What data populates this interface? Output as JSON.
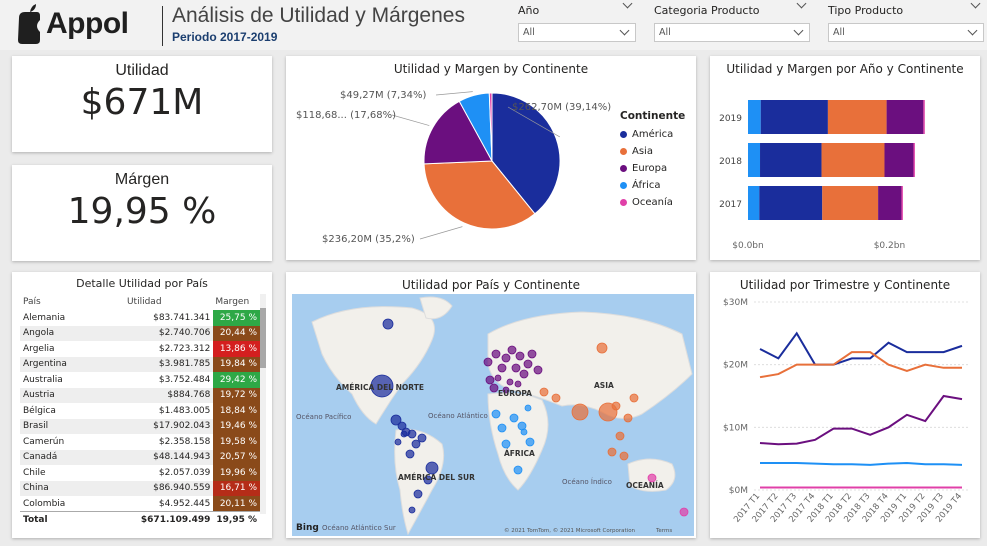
{
  "header": {
    "brand": "Appol",
    "title": "Análisis de Utilidad y Márgenes",
    "subtitle": "Periodo 2017-2019"
  },
  "filters": [
    {
      "label": "Año",
      "value": "All"
    },
    {
      "label": "Categoria Producto",
      "value": "All"
    },
    {
      "label": "Tipo Producto",
      "value": "All"
    }
  ],
  "kpis": {
    "utilidad": {
      "label": "Utilidad",
      "value": "$671M"
    },
    "margen": {
      "label": "Márgen",
      "value": "19,95 %"
    }
  },
  "colors": {
    "america": "#1a2d9c",
    "asia": "#e8703a",
    "europa": "#6b0f7f",
    "africa": "#1e90f5",
    "oceania": "#e040a8",
    "pos": "#2ea846",
    "neg": "#d41f1f",
    "mid": "#8a4a1a"
  },
  "pie": {
    "title": "Utilidad y Margen by Continente",
    "legend_title": "Continente",
    "slices": [
      {
        "name": "América",
        "value": 262.7,
        "label": "$262,70M (39,14%)",
        "color": "#1a2d9c"
      },
      {
        "name": "Asia",
        "value": 236.2,
        "label": "$236,20M (35,2%)",
        "color": "#e8703a"
      },
      {
        "name": "Europa",
        "value": 118.68,
        "label": "$118,68... (17,68%)",
        "color": "#6b0f7f"
      },
      {
        "name": "África",
        "value": 49.27,
        "label": "$49,27M (7,34%)",
        "color": "#1e90f5"
      },
      {
        "name": "Oceanía",
        "value": 4.26,
        "label": "",
        "color": "#e040a8"
      }
    ]
  },
  "chart_data": [
    {
      "type": "bar",
      "title": "Utilidad y Margen por Año y Continente",
      "orientation": "horizontal-stacked",
      "categories": [
        "2019",
        "2018",
        "2017"
      ],
      "xticks": [
        "$0.0bn",
        "$0.2bn"
      ],
      "xlim": [
        0,
        0.28
      ],
      "series": [
        {
          "name": "África",
          "values": [
            0.018,
            0.017,
            0.016
          ],
          "color": "#1e90f5"
        },
        {
          "name": "América",
          "values": [
            0.095,
            0.087,
            0.089
          ],
          "color": "#1a2d9c"
        },
        {
          "name": "Asia",
          "values": [
            0.083,
            0.089,
            0.079
          ],
          "color": "#e8703a"
        },
        {
          "name": "Europa",
          "values": [
            0.052,
            0.041,
            0.033
          ],
          "color": "#6b0f7f"
        },
        {
          "name": "Oceanía",
          "values": [
            0.002,
            0.002,
            0.002
          ],
          "color": "#e040a8"
        }
      ]
    },
    {
      "type": "line",
      "title": "Utilidad por Trimestre y Continente",
      "x": [
        "2017 T1",
        "2017 T2",
        "2017 T3",
        "2017 T4",
        "2018 T1",
        "2018 T2",
        "2018 T3",
        "2018 T4",
        "2019 T1",
        "2019 T2",
        "2019 T3",
        "2019 T4"
      ],
      "yticks": [
        "$0M",
        "$10M",
        "$20M",
        "$30M"
      ],
      "ylim": [
        0,
        30
      ],
      "series": [
        {
          "name": "América",
          "color": "#1a2d9c",
          "values": [
            22.5,
            21,
            25,
            20,
            20,
            21,
            21,
            23.5,
            22,
            22,
            22,
            23
          ]
        },
        {
          "name": "Asia",
          "color": "#e8703a",
          "values": [
            18,
            18.5,
            20,
            20,
            20,
            22,
            22,
            20,
            19,
            20,
            19.5,
            19.5
          ]
        },
        {
          "name": "Europa",
          "color": "#6b0f7f",
          "values": [
            7.5,
            7.3,
            7.4,
            8,
            9.8,
            9.8,
            8.8,
            10,
            12,
            11,
            15,
            14.5
          ]
        },
        {
          "name": "África",
          "color": "#1e90f5",
          "values": [
            4.3,
            4.3,
            4.3,
            4.2,
            4.1,
            4.1,
            4.0,
            4.2,
            4.3,
            4.1,
            4.1,
            4.0
          ]
        },
        {
          "name": "Oceanía",
          "color": "#e040a8",
          "values": [
            0.4,
            0.4,
            0.4,
            0.4,
            0.4,
            0.4,
            0.4,
            0.4,
            0.4,
            0.4,
            0.4,
            0.4
          ]
        }
      ]
    }
  ],
  "map": {
    "title": "Utilidad por País y Continente",
    "labels": {
      "na": "AMÉRICA DEL NORTE",
      "sa": "AMÉRICA DEL SUR",
      "eu": "EUROPA",
      "as": "ASIA",
      "af": "ÁFRICA",
      "oc": "OCEANÍA",
      "pac": "Océano Pacífico",
      "atl": "Océano Atlántico",
      "ind": "Océano Índico",
      "atls": "Océano Atlántico Sur"
    },
    "brand": "Bing",
    "copyright": "© 2021 TomTom, © 2021 Microsoft Corporation",
    "terms": "Terms"
  },
  "table": {
    "title": "Detalle Utilidad por País",
    "headers": [
      "País",
      "Utilidad",
      "Margen"
    ],
    "rows": [
      {
        "pais": "Alemania",
        "utilidad": "$83.741.341",
        "margen": "25,75 %",
        "color": "#2ea846"
      },
      {
        "pais": "Angola",
        "utilidad": "$2.740.706",
        "margen": "20,44 %",
        "color": "#8a4a1a"
      },
      {
        "pais": "Argelia",
        "utilidad": "$2.723.312",
        "margen": "13,86 %",
        "color": "#d41f1f"
      },
      {
        "pais": "Argentina",
        "utilidad": "$3.981.785",
        "margen": "19,84 %",
        "color": "#8a4a1a"
      },
      {
        "pais": "Australia",
        "utilidad": "$3.752.484",
        "margen": "29,42 %",
        "color": "#2ea846"
      },
      {
        "pais": "Austria",
        "utilidad": "$884.768",
        "margen": "19,72 %",
        "color": "#8a4a1a"
      },
      {
        "pais": "Bélgica",
        "utilidad": "$1.483.005",
        "margen": "18,84 %",
        "color": "#8a4a1a"
      },
      {
        "pais": "Brasil",
        "utilidad": "$17.902.043",
        "margen": "19,46 %",
        "color": "#8a4a1a"
      },
      {
        "pais": "Camerún",
        "utilidad": "$2.358.158",
        "margen": "19,58 %",
        "color": "#8a4a1a"
      },
      {
        "pais": "Canadá",
        "utilidad": "$48.144.943",
        "margen": "20,57 %",
        "color": "#8a4a1a"
      },
      {
        "pais": "Chile",
        "utilidad": "$2.057.039",
        "margen": "19,96 %",
        "color": "#8a4a1a"
      },
      {
        "pais": "China",
        "utilidad": "$86.940.559",
        "margen": "16,71 %",
        "color": "#b52c18"
      },
      {
        "pais": "Colombia",
        "utilidad": "$4.952.445",
        "margen": "20,11 %",
        "color": "#8a4a1a"
      }
    ],
    "total": {
      "pais": "Total",
      "utilidad": "$671.109.499",
      "margen": "19,95 %"
    }
  }
}
